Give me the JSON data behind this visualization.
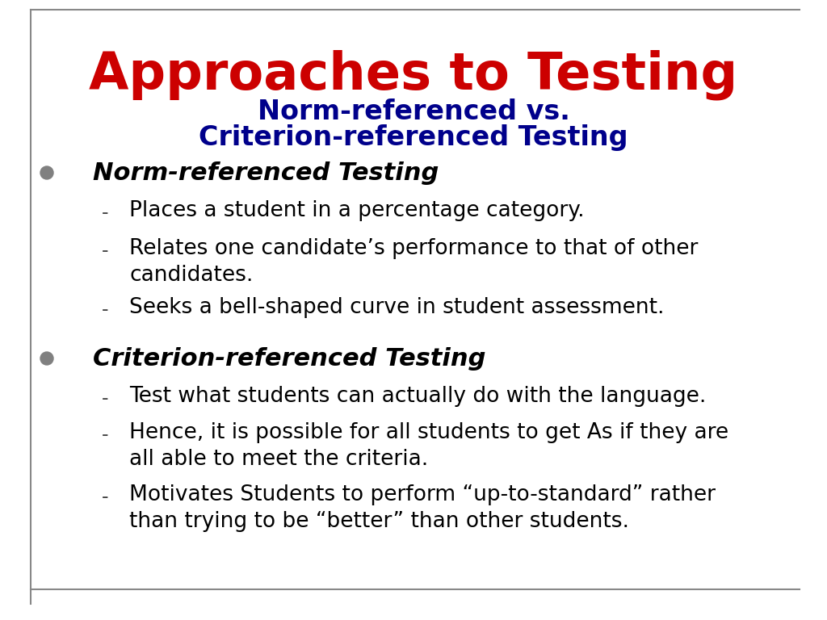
{
  "title_line1": "Approaches to Testing",
  "title_line2a": "Norm-referenced vs.",
  "title_line2b": "Criterion-referenced Testing",
  "title_line1_color": "#cc0000",
  "title_line2_color": "#00008B",
  "bg_color": "#ffffff",
  "border_color": "#888888",
  "bullet_color": "#808080",
  "bullet1_text": "Norm-referenced Testing",
  "bullet1_subitems": [
    "Places a student in a percentage category.",
    "Relates one candidate’s performance to that of other\ncandidates.",
    "Seeks a bell-shaped curve in student assessment."
  ],
  "bullet2_text": "Criterion-referenced Testing",
  "bullet2_subitems": [
    "Test what students can actually do with the language.",
    "Hence, it is possible for all students to get As if they are\nall able to meet the criteria.",
    "Motivates Students to perform “up-to-standard” rather\nthan trying to be “better” than other students."
  ],
  "footer_line_color": "#888888",
  "title1_fontsize": 46,
  "title2_fontsize": 24,
  "bullet_header_fontsize": 22,
  "sub_fontsize": 19
}
